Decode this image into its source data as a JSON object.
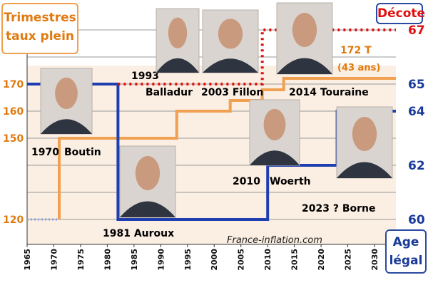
{
  "chart_data": {
    "type": "line",
    "title": "",
    "xlabel": "",
    "ylabel": "",
    "x_ticks": [
      1965,
      1970,
      1975,
      1980,
      1985,
      1990,
      1995,
      2000,
      2005,
      2010,
      2015,
      2020,
      2025,
      2030
    ],
    "xlim": [
      1965,
      2034
    ],
    "left_axis": {
      "title_line1": "Trimestres",
      "title_line2": "taux plein",
      "ticks": [
        "120",
        "150",
        "160",
        "170"
      ],
      "tick_values": [
        120,
        150,
        160,
        170
      ]
    },
    "right_axis": {
      "title_line1": "Age",
      "title_line2": "légal",
      "ticks": [
        "60",
        "62",
        "64",
        "65"
      ],
      "tick_values": [
        60,
        62,
        64,
        65
      ],
      "decote_label": "Décote",
      "decote_value": "67",
      "ylim": [
        59.5,
        67.5
      ]
    },
    "series": [
      {
        "name": "Trimestres taux plein",
        "color": "#f0a050",
        "points": [
          [
            1965,
            120
          ],
          [
            1971,
            120
          ],
          [
            1971,
            150
          ],
          [
            1993,
            150
          ],
          [
            1993,
            160
          ],
          [
            2003,
            160
          ],
          [
            2003,
            164
          ],
          [
            2009,
            164
          ],
          [
            2009,
            166
          ],
          [
            2013,
            166
          ],
          [
            2013,
            172
          ],
          [
            2034,
            172
          ]
        ]
      },
      {
        "name": "Age légal",
        "color": "#1f3fb0",
        "points": [
          [
            1965,
            65
          ],
          [
            1982,
            65
          ],
          [
            1982,
            60
          ],
          [
            2010,
            60
          ],
          [
            2010,
            62
          ],
          [
            2023,
            62
          ],
          [
            2023,
            64
          ],
          [
            2034,
            64
          ]
        ]
      },
      {
        "name": "Décote",
        "color": "#e01010",
        "points": [
          [
            1982,
            65
          ],
          [
            2009,
            65
          ],
          [
            2009,
            67
          ],
          [
            2034,
            67
          ]
        ]
      }
    ],
    "annotations": [
      {
        "text": "1970",
        "color": "#000000"
      },
      {
        "text": "Boutin",
        "color": "#000000"
      },
      {
        "text": "1981 Auroux",
        "color": "#000000"
      },
      {
        "text": "1993",
        "color": "#000000"
      },
      {
        "text": "Balladur",
        "color": "#000000"
      },
      {
        "text": "2003 Fillon",
        "color": "#000000"
      },
      {
        "text": "2014 Touraine",
        "color": "#000000"
      },
      {
        "text": "172 T",
        "color": "#e07a10"
      },
      {
        "text": "(43 ans)",
        "color": "#e07a10"
      },
      {
        "text": "2010",
        "color": "#000000"
      },
      {
        "text": "Woerth",
        "color": "#000000"
      },
      {
        "text": "2023 ? Borne",
        "color": "#000000"
      }
    ],
    "watermark": "France-inflation.com",
    "grid": true
  },
  "photos": [
    {
      "name": "portrait-boutin",
      "subject": "Boutin"
    },
    {
      "name": "portrait-auroux",
      "subject": "Auroux"
    },
    {
      "name": "portrait-balladur",
      "subject": "Balladur"
    },
    {
      "name": "portrait-fillon",
      "subject": "Fillon"
    },
    {
      "name": "portrait-touraine",
      "subject": "Touraine"
    },
    {
      "name": "portrait-woerth",
      "subject": "Woerth"
    },
    {
      "name": "portrait-borne",
      "subject": "Borne"
    }
  ]
}
